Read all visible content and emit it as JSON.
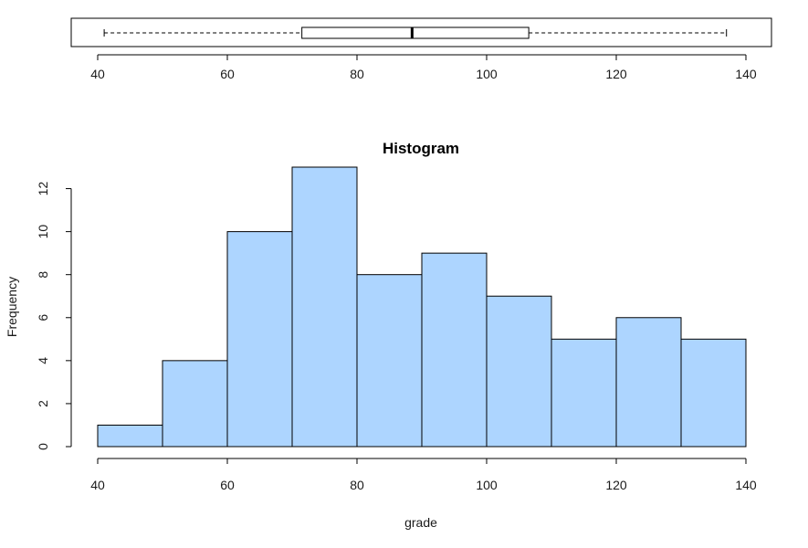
{
  "chart_data": [
    {
      "type": "boxplot",
      "orientation": "horizontal",
      "min": 41,
      "q1": 71.5,
      "median": 88.5,
      "q3": 106.5,
      "max": 137,
      "xlim": [
        40,
        140
      ],
      "x_ticks": [
        40,
        60,
        80,
        100,
        120,
        140
      ],
      "x_tick_labels": [
        "40",
        "60",
        "80",
        "100",
        "120",
        "140"
      ],
      "box_color": "#ffffff",
      "line_color": "#000000"
    },
    {
      "type": "bar",
      "subtype": "histogram",
      "title": "Histogram",
      "xlabel": "grade",
      "ylabel": "Frequency",
      "bin_edges": [
        40,
        50,
        60,
        70,
        80,
        90,
        100,
        110,
        120,
        130,
        140
      ],
      "values": [
        1,
        4,
        10,
        13,
        8,
        9,
        7,
        5,
        6,
        5
      ],
      "xlim": [
        40,
        140
      ],
      "ylim": [
        0,
        13
      ],
      "x_ticks": [
        40,
        60,
        80,
        100,
        120,
        140
      ],
      "x_tick_labels": [
        "40",
        "60",
        "80",
        "100",
        "120",
        "140"
      ],
      "y_ticks": [
        0,
        2,
        4,
        6,
        8,
        10,
        12
      ],
      "y_tick_labels": [
        "0",
        "2",
        "4",
        "6",
        "8",
        "10",
        "12"
      ],
      "bar_color": "#add5ff",
      "edge_color": "#000000",
      "grid": false
    }
  ]
}
